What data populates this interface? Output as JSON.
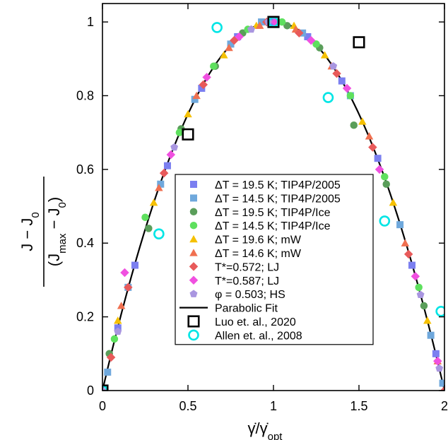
{
  "chart_data": {
    "type": "scatter",
    "xlabel": "γ̇/γ̇",
    "xlabel_sub": "opt",
    "ylabel": {
      "numerator": "J − J",
      "numerator_sub": "0",
      "denominator_open": "(J",
      "denominator_sub1": "max",
      "denominator_mid": " − J",
      "denominator_sub2": "0",
      "denominator_close": ")"
    },
    "xlim": [
      0,
      2
    ],
    "ylim": [
      0,
      1.05
    ],
    "xticks": [
      {
        "v": 0,
        "l": "0"
      },
      {
        "v": 0.5,
        "l": "0.5"
      },
      {
        "v": 1,
        "l": "1"
      },
      {
        "v": 1.5,
        "l": "1.5"
      },
      {
        "v": 2,
        "l": "2"
      }
    ],
    "yticks": [
      {
        "v": 0,
        "l": "0"
      },
      {
        "v": 0.2,
        "l": "0.2"
      },
      {
        "v": 0.4,
        "l": "0.4"
      },
      {
        "v": 0.6,
        "l": "0.6"
      },
      {
        "v": 0.8,
        "l": "0.8"
      },
      {
        "v": 1,
        "l": "1"
      }
    ],
    "grid": false,
    "legend_position": "lower-center",
    "fit": {
      "name": "Parabolic Fit",
      "color": "#000000",
      "formula": "y = 1 - (x-1)^2"
    },
    "series": [
      {
        "name": "ΔT = 19.5 K; TIP4P/2005",
        "marker": "square",
        "color": "#7b7ff0",
        "x": [
          0.09,
          0.19,
          0.38,
          0.58,
          0.79,
          1.0,
          1.2,
          1.4,
          1.61,
          1.81,
          1.95
        ],
        "y": [
          0.17,
          0.34,
          0.61,
          0.82,
          0.96,
          1.0,
          0.96,
          0.84,
          0.63,
          0.34,
          0.1
        ]
      },
      {
        "name": "ΔT = 14.5 K; TIP4P/2005",
        "marker": "square",
        "color": "#6fa8dc",
        "x": [
          0.03,
          0.15,
          0.34,
          0.54,
          0.75,
          0.93,
          1.17,
          1.45,
          1.74,
          1.92,
          1.99
        ],
        "y": [
          0.05,
          0.28,
          0.56,
          0.79,
          0.94,
          1.0,
          0.97,
          0.8,
          0.45,
          0.15,
          0.02
        ]
      },
      {
        "name": "ΔT = 19.5 K; TIP4P/Ice",
        "marker": "circle",
        "color": "#5a9e5a",
        "x": [
          0.04,
          0.27,
          0.46,
          0.66,
          0.82,
          1.08,
          1.27,
          1.47,
          1.66,
          1.88
        ],
        "y": [
          0.1,
          0.44,
          0.71,
          0.88,
          0.97,
          0.99,
          0.93,
          0.72,
          0.56,
          0.23
        ]
      },
      {
        "name": "ΔT = 14.5 K; TIP4P/Ice",
        "marker": "circle",
        "color": "#5ee05e",
        "x": [
          0.07,
          0.25,
          0.45,
          0.65,
          0.85,
          1.05,
          1.25,
          1.45,
          1.65,
          1.85
        ],
        "y": [
          0.14,
          0.47,
          0.7,
          0.88,
          0.98,
          1.0,
          0.94,
          0.8,
          0.58,
          0.28
        ]
      },
      {
        "name": "ΔT = 19.6 K; mW",
        "marker": "triangle",
        "color": "#f5c000",
        "x": [
          0.09,
          0.3,
          0.5,
          0.71,
          0.9,
          1.12,
          1.3,
          1.52,
          1.7,
          1.9
        ],
        "y": [
          0.19,
          0.51,
          0.75,
          0.91,
          0.99,
          0.99,
          0.91,
          0.73,
          0.51,
          0.19
        ]
      },
      {
        "name": "ΔT = 14.6 K; mW",
        "marker": "triangle",
        "color": "#f07050",
        "x": [
          0.11,
          0.33,
          0.55,
          0.74,
          0.92,
          1.13,
          1.34,
          1.56,
          1.77,
          1.96
        ],
        "y": [
          0.23,
          0.55,
          0.8,
          0.93,
          0.99,
          0.98,
          0.88,
          0.69,
          0.4,
          0.08
        ]
      },
      {
        "name": "T*=0.572; LJ",
        "marker": "diamond",
        "color": "#e85a5a",
        "x": [
          0.05,
          0.15,
          0.36,
          0.59,
          0.77,
          0.96,
          1.15,
          1.37,
          1.58,
          1.79,
          2.0
        ],
        "y": [
          0.09,
          0.28,
          0.59,
          0.83,
          0.95,
          1.0,
          0.97,
          0.86,
          0.66,
          0.37,
          0.0
        ]
      },
      {
        "name": "T*=0.587; LJ",
        "marker": "diamond",
        "color": "#f050e0",
        "x": [
          0.13,
          0.4,
          0.61,
          0.8,
          1.01,
          1.22,
          1.43,
          1.62,
          1.83,
          1.96
        ],
        "y": [
          0.32,
          0.64,
          0.85,
          0.96,
          1.0,
          0.95,
          0.82,
          0.6,
          0.31,
          0.08
        ]
      },
      {
        "name": "φ = 0.503; HS",
        "marker": "pentagon",
        "color": "#a996e0",
        "x": [
          0.0,
          0.09,
          0.42,
          0.87,
          0.97,
          1.35,
          1.86,
          1.97
        ],
        "y": [
          0.0,
          0.16,
          0.66,
          0.98,
          1.0,
          0.88,
          0.26,
          0.06
        ]
      },
      {
        "name": "Luo et. al., 2020",
        "marker": "open-square",
        "color": "#000000",
        "x": [
          0.0,
          0.5,
          1.0,
          1.5
        ],
        "y": [
          0.0,
          0.695,
          1.0,
          0.945
        ]
      },
      {
        "name": "Allen et. al., 2008",
        "marker": "open-circle",
        "color": "#00e5e5",
        "x": [
          0.0,
          0.33,
          0.67,
          1.0,
          1.32,
          1.65,
          1.98
        ],
        "y": [
          0.0,
          0.425,
          0.985,
          1.0,
          0.795,
          0.46,
          0.215
        ]
      }
    ],
    "legend_order": [
      0,
      1,
      2,
      3,
      4,
      5,
      6,
      7,
      8,
      "fit",
      9,
      10
    ]
  }
}
